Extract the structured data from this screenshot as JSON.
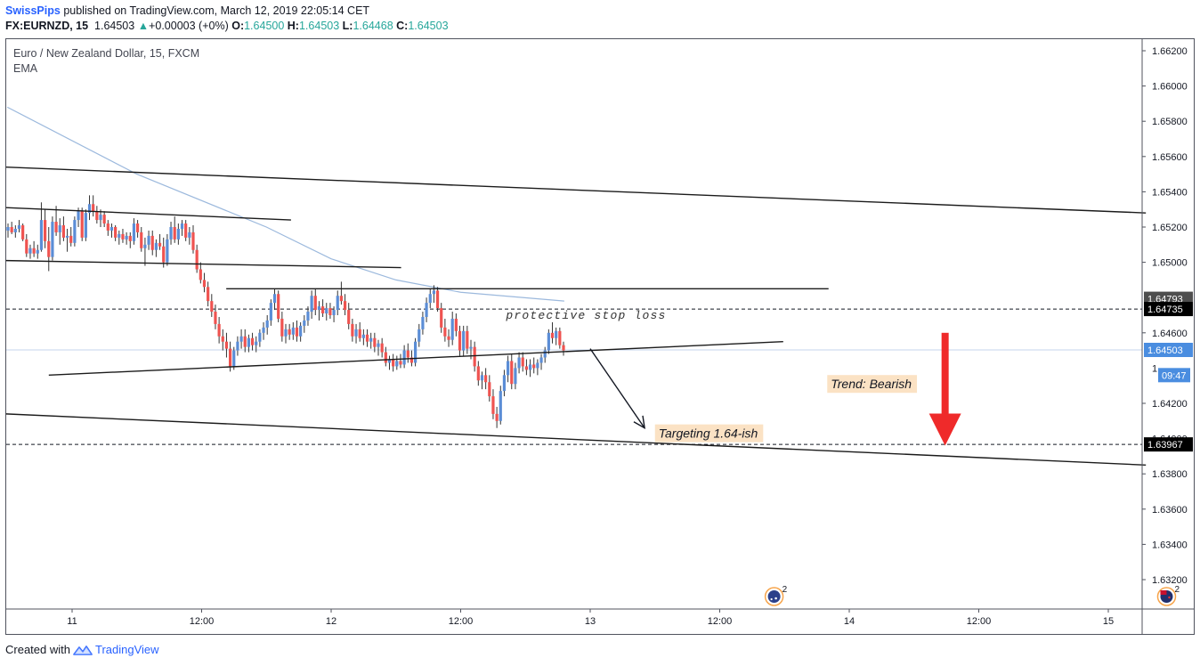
{
  "header": {
    "author": "SwissPips",
    "published": "published on TradingView.com, March 12, 2019 22:05:14 CET",
    "symbol": "FX:EURNZD, 15",
    "last": "1.64503",
    "change": "+0.00003 (+0%)",
    "o_label": "O:",
    "o_value": "1.64500",
    "h_label": "H:",
    "h_value": "1.64503",
    "l_label": "L:",
    "l_value": "1.64468",
    "c_label": "C:",
    "c_value": "1.64503"
  },
  "plot": {
    "title": "Euro / New Zealand Dollar, 15, FXCM",
    "indicator": "EMA"
  },
  "footer": {
    "created_with": "Created with",
    "brand": "TradingView"
  },
  "colors": {
    "up": "#5b8dd6",
    "down": "#ef5350",
    "ema": "#9cb9dd",
    "trend_arrow": "#ef2a2a",
    "label_bg": "#fbe2c4",
    "author": "#2962ff"
  },
  "chart_data": {
    "type": "candlestick",
    "title": "Euro / New Zealand Dollar, 15, FXCM",
    "x_tick_labels": [
      "11",
      "12:00",
      "12",
      "12:00",
      "13",
      "12:00",
      "14",
      "12:00",
      "15"
    ],
    "y_ticks": [
      1.632,
      1.634,
      1.636,
      1.638,
      1.642,
      1.646,
      1.65,
      1.652,
      1.654,
      1.656,
      1.658,
      1.66,
      1.662
    ],
    "y_tick_labels": [
      "1.63200",
      "1.63400",
      "1.63600",
      "1.63800",
      "1.64200",
      "1.64600",
      "1.65000",
      "1.65200",
      "1.65400",
      "1.65600",
      "1.65800",
      "1.66000",
      "1.66200"
    ],
    "ylim": [
      1.6306,
      1.6628
    ],
    "price_labels": [
      {
        "text": "1.64793",
        "price": 1.64793,
        "style": "dark"
      },
      {
        "text": "1.64735",
        "price": 1.64735,
        "style": "black"
      },
      {
        "text": "1.64503",
        "price": 1.64503,
        "style": "blue"
      },
      {
        "text": "09:47",
        "price": 1.6436,
        "style": "blue"
      },
      {
        "text": "1.63967",
        "price": 1.63967,
        "style": "black"
      }
    ],
    "ema_path": [
      [
        0.0,
        1.6588
      ],
      [
        1.0,
        1.655
      ],
      [
        2.0,
        1.652
      ],
      [
        2.5,
        1.6502
      ],
      [
        3.0,
        1.649
      ],
      [
        3.5,
        1.6483
      ],
      [
        4.3,
        1.6478
      ]
    ],
    "trendlines": [
      {
        "p1": [
          0.0,
          1.6554
        ],
        "p2": [
          8.8,
          1.6528
        ]
      },
      {
        "p1": [
          0.0,
          1.6531
        ],
        "p2": [
          2.2,
          1.6524
        ]
      },
      {
        "p1": [
          0.0,
          1.6501
        ],
        "p2": [
          3.05,
          1.6497
        ]
      },
      {
        "p1": [
          1.7,
          1.6485
        ],
        "p2": [
          6.35,
          1.6485
        ]
      },
      {
        "p1": [
          0.33,
          1.6436
        ],
        "p2": [
          6.0,
          1.6455
        ]
      },
      {
        "p1": [
          0.0,
          1.6414
        ],
        "p2": [
          8.8,
          1.6385
        ]
      }
    ],
    "hlines": [
      {
        "price": 1.64735,
        "style": "dashed"
      },
      {
        "price": 1.63967,
        "style": "dashed"
      },
      {
        "price": 1.64503,
        "style": "thin-blue"
      }
    ],
    "annotations": {
      "stop_loss": {
        "text": "protective stop loss",
        "x": 3.85,
        "price": 1.6468
      },
      "targeting": {
        "text": "Targeting 1.64-ish",
        "x": 5.0,
        "price": 1.6403
      },
      "trend": {
        "text": "Trend: Bearish",
        "x": 6.33,
        "price": 1.6431
      },
      "pointer_arrow": {
        "from": [
          4.5,
          1.6451
        ],
        "to": [
          4.92,
          1.6406
        ]
      },
      "trend_arrow": {
        "x": 7.24,
        "from": 1.646,
        "to": 1.6398
      }
    },
    "events": [
      {
        "x": 5.42,
        "count": "2",
        "flag": "AU"
      },
      {
        "x": 8.45,
        "count": "2",
        "flag": "NZ"
      }
    ],
    "candles": [
      [
        1.6518,
        1.6522,
        1.6514,
        1.652
      ],
      [
        1.652,
        1.6523,
        1.6516,
        1.6517
      ],
      [
        1.6517,
        1.6521,
        1.6514,
        1.6519
      ],
      [
        1.6519,
        1.6524,
        1.6517,
        1.6521
      ],
      [
        1.6521,
        1.6522,
        1.6512,
        1.6513
      ],
      [
        1.6513,
        1.6516,
        1.6503,
        1.6505
      ],
      [
        1.6505,
        1.651,
        1.6502,
        1.6508
      ],
      [
        1.6508,
        1.6512,
        1.6503,
        1.6505
      ],
      [
        1.6505,
        1.651,
        1.6502,
        1.6507
      ],
      [
        1.6507,
        1.6534,
        1.6506,
        1.6524
      ],
      [
        1.6524,
        1.653,
        1.6508,
        1.6512
      ],
      [
        1.6512,
        1.652,
        1.6495,
        1.6503
      ],
      [
        1.6503,
        1.6526,
        1.6501,
        1.6523
      ],
      [
        1.6523,
        1.6532,
        1.6515,
        1.6517
      ],
      [
        1.6517,
        1.6525,
        1.651,
        1.6521
      ],
      [
        1.6521,
        1.6526,
        1.6512,
        1.6514
      ],
      [
        1.6514,
        1.6519,
        1.6506,
        1.6515
      ],
      [
        1.6515,
        1.652,
        1.6509,
        1.6511
      ],
      [
        1.6511,
        1.6526,
        1.6509,
        1.6524
      ],
      [
        1.6524,
        1.6531,
        1.652,
        1.6529
      ],
      [
        1.6529,
        1.6531,
        1.6512,
        1.6514
      ],
      [
        1.6514,
        1.653,
        1.6512,
        1.6528
      ],
      [
        1.6528,
        1.6538,
        1.6524,
        1.6533
      ],
      [
        1.6533,
        1.6538,
        1.6526,
        1.6529
      ],
      [
        1.6529,
        1.6532,
        1.6522,
        1.6524
      ],
      [
        1.6524,
        1.653,
        1.652,
        1.6527
      ],
      [
        1.6527,
        1.6529,
        1.652,
        1.6522
      ],
      [
        1.6522,
        1.6524,
        1.6515,
        1.6518
      ],
      [
        1.6518,
        1.6522,
        1.6514,
        1.652
      ],
      [
        1.652,
        1.6521,
        1.6512,
        1.6514
      ],
      [
        1.6514,
        1.6518,
        1.651,
        1.6516
      ],
      [
        1.6516,
        1.6519,
        1.6511,
        1.6513
      ],
      [
        1.6513,
        1.6517,
        1.651,
        1.6515
      ],
      [
        1.6515,
        1.6517,
        1.6508,
        1.6512
      ],
      [
        1.6512,
        1.6525,
        1.651,
        1.6522
      ],
      [
        1.6522,
        1.6524,
        1.6514,
        1.6517
      ],
      [
        1.6517,
        1.652,
        1.6506,
        1.6508
      ],
      [
        1.6508,
        1.6514,
        1.6498,
        1.651
      ],
      [
        1.651,
        1.6518,
        1.6507,
        1.6515
      ],
      [
        1.6515,
        1.6518,
        1.6504,
        1.6507
      ],
      [
        1.6507,
        1.6513,
        1.6503,
        1.6511
      ],
      [
        1.6511,
        1.6516,
        1.6507,
        1.6509
      ],
      [
        1.6509,
        1.6514,
        1.6497,
        1.65
      ],
      [
        1.65,
        1.6516,
        1.6498,
        1.6513
      ],
      [
        1.6513,
        1.6523,
        1.651,
        1.652
      ],
      [
        1.652,
        1.6526,
        1.6511,
        1.6513
      ],
      [
        1.6513,
        1.6522,
        1.651,
        1.6519
      ],
      [
        1.6519,
        1.6524,
        1.6515,
        1.6522
      ],
      [
        1.6522,
        1.6524,
        1.6512,
        1.6514
      ],
      [
        1.6514,
        1.652,
        1.651,
        1.6517
      ],
      [
        1.6517,
        1.6521,
        1.6505,
        1.6507
      ],
      [
        1.6507,
        1.651,
        1.6494,
        1.6496
      ],
      [
        1.6496,
        1.65,
        1.6488,
        1.649
      ],
      [
        1.649,
        1.6494,
        1.6483,
        1.6486
      ],
      [
        1.6486,
        1.6489,
        1.6475,
        1.6478
      ],
      [
        1.6478,
        1.6482,
        1.6469,
        1.6472
      ],
      [
        1.6472,
        1.6476,
        1.6462,
        1.6465
      ],
      [
        1.6465,
        1.6469,
        1.6454,
        1.6458
      ],
      [
        1.6458,
        1.6462,
        1.645,
        1.6455
      ],
      [
        1.6455,
        1.646,
        1.6446,
        1.6451
      ],
      [
        1.6451,
        1.6455,
        1.6438,
        1.6441
      ],
      [
        1.6441,
        1.6452,
        1.6439,
        1.645
      ],
      [
        1.645,
        1.6458,
        1.6447,
        1.6455
      ],
      [
        1.6455,
        1.6462,
        1.6451,
        1.6458
      ],
      [
        1.6458,
        1.6462,
        1.6449,
        1.6452
      ],
      [
        1.6452,
        1.6459,
        1.6449,
        1.6457
      ],
      [
        1.6457,
        1.646,
        1.645,
        1.6453
      ],
      [
        1.6453,
        1.6458,
        1.6449,
        1.6455
      ],
      [
        1.6455,
        1.6462,
        1.6452,
        1.646
      ],
      [
        1.646,
        1.6466,
        1.6456,
        1.6463
      ],
      [
        1.6463,
        1.647,
        1.6459,
        1.6467
      ],
      [
        1.6467,
        1.6479,
        1.6464,
        1.6477
      ],
      [
        1.6477,
        1.6485,
        1.6473,
        1.6482
      ],
      [
        1.6482,
        1.6484,
        1.6466,
        1.6468
      ],
      [
        1.6468,
        1.6472,
        1.6455,
        1.6458
      ],
      [
        1.6458,
        1.6465,
        1.6454,
        1.6462
      ],
      [
        1.6462,
        1.6465,
        1.6456,
        1.6459
      ],
      [
        1.6459,
        1.6466,
        1.6456,
        1.6463
      ],
      [
        1.6463,
        1.6467,
        1.6455,
        1.6458
      ],
      [
        1.6458,
        1.6466,
        1.6455,
        1.6464
      ],
      [
        1.6464,
        1.647,
        1.646,
        1.6467
      ],
      [
        1.6467,
        1.6475,
        1.6464,
        1.6472
      ],
      [
        1.6472,
        1.6484,
        1.6468,
        1.6481
      ],
      [
        1.6481,
        1.6485,
        1.647,
        1.6473
      ],
      [
        1.6473,
        1.6478,
        1.6467,
        1.6475
      ],
      [
        1.6475,
        1.6479,
        1.6469,
        1.6471
      ],
      [
        1.6471,
        1.6477,
        1.6467,
        1.6474
      ],
      [
        1.6474,
        1.6477,
        1.6468,
        1.647
      ],
      [
        1.647,
        1.6475,
        1.6466,
        1.6473
      ],
      [
        1.6473,
        1.6484,
        1.647,
        1.6481
      ],
      [
        1.6481,
        1.6489,
        1.6476,
        1.6478
      ],
      [
        1.6478,
        1.6482,
        1.647,
        1.6473
      ],
      [
        1.6473,
        1.6477,
        1.6462,
        1.6465
      ],
      [
        1.6465,
        1.6468,
        1.6455,
        1.6458
      ],
      [
        1.6458,
        1.6465,
        1.6454,
        1.6462
      ],
      [
        1.6462,
        1.6466,
        1.6455,
        1.6457
      ],
      [
        1.6457,
        1.6462,
        1.6453,
        1.6459
      ],
      [
        1.6459,
        1.6462,
        1.6452,
        1.6455
      ],
      [
        1.6455,
        1.646,
        1.6451,
        1.6457
      ],
      [
        1.6457,
        1.646,
        1.6449,
        1.6452
      ],
      [
        1.6452,
        1.6456,
        1.6447,
        1.6454
      ],
      [
        1.6454,
        1.6457,
        1.6446,
        1.6449
      ],
      [
        1.6449,
        1.6452,
        1.6441,
        1.6443
      ],
      [
        1.6443,
        1.6447,
        1.6439,
        1.6445
      ],
      [
        1.6445,
        1.6448,
        1.6438,
        1.6441
      ],
      [
        1.6441,
        1.6447,
        1.6439,
        1.6444
      ],
      [
        1.6444,
        1.6448,
        1.644,
        1.6442
      ],
      [
        1.6442,
        1.6453,
        1.644,
        1.645
      ],
      [
        1.645,
        1.6454,
        1.6443,
        1.6446
      ],
      [
        1.6446,
        1.645,
        1.6441,
        1.6443
      ],
      [
        1.6443,
        1.6457,
        1.6441,
        1.6455
      ],
      [
        1.6455,
        1.6465,
        1.6452,
        1.6462
      ],
      [
        1.6462,
        1.6472,
        1.6459,
        1.6469
      ],
      [
        1.6469,
        1.648,
        1.6466,
        1.6477
      ],
      [
        1.6477,
        1.6485,
        1.6474,
        1.6482
      ],
      [
        1.6482,
        1.6487,
        1.6477,
        1.6484
      ],
      [
        1.6484,
        1.6486,
        1.6472,
        1.6474
      ],
      [
        1.6474,
        1.6477,
        1.646,
        1.6463
      ],
      [
        1.6463,
        1.6468,
        1.6455,
        1.6458
      ],
      [
        1.6458,
        1.6462,
        1.6452,
        1.6456
      ],
      [
        1.6456,
        1.6472,
        1.6453,
        1.6468
      ],
      [
        1.6468,
        1.6471,
        1.6458,
        1.6461
      ],
      [
        1.6461,
        1.6464,
        1.6447,
        1.645
      ],
      [
        1.645,
        1.6464,
        1.6447,
        1.6461
      ],
      [
        1.6461,
        1.6464,
        1.6448,
        1.6451
      ],
      [
        1.6451,
        1.6456,
        1.6445,
        1.6452
      ],
      [
        1.6452,
        1.6455,
        1.6438,
        1.6441
      ],
      [
        1.6441,
        1.6444,
        1.643,
        1.6433
      ],
      [
        1.6433,
        1.6438,
        1.6428,
        1.6436
      ],
      [
        1.6436,
        1.644,
        1.6428,
        1.6432
      ],
      [
        1.6432,
        1.6436,
        1.6421,
        1.6424
      ],
      [
        1.6424,
        1.6428,
        1.6411,
        1.6414
      ],
      [
        1.6414,
        1.6418,
        1.6406,
        1.641
      ],
      [
        1.641,
        1.643,
        1.6408,
        1.6427
      ],
      [
        1.6427,
        1.6439,
        1.6424,
        1.6436
      ],
      [
        1.6436,
        1.6447,
        1.6432,
        1.6444
      ],
      [
        1.6444,
        1.6448,
        1.6428,
        1.6431
      ],
      [
        1.6431,
        1.6443,
        1.6428,
        1.644
      ],
      [
        1.644,
        1.6449,
        1.6437,
        1.6446
      ],
      [
        1.6446,
        1.6449,
        1.6438,
        1.6441
      ],
      [
        1.6441,
        1.6445,
        1.6436,
        1.6439
      ],
      [
        1.6439,
        1.6445,
        1.6435,
        1.6442
      ],
      [
        1.6442,
        1.6446,
        1.6437,
        1.644
      ],
      [
        1.644,
        1.6445,
        1.6436,
        1.6443
      ],
      [
        1.6443,
        1.6448,
        1.6439,
        1.6446
      ],
      [
        1.6446,
        1.6452,
        1.6443,
        1.645
      ],
      [
        1.645,
        1.6462,
        1.6448,
        1.646
      ],
      [
        1.646,
        1.6466,
        1.6454,
        1.6457
      ],
      [
        1.6457,
        1.6463,
        1.6453,
        1.6461
      ],
      [
        1.6461,
        1.6463,
        1.6451,
        1.6453
      ],
      [
        1.6453,
        1.6455,
        1.6447,
        1.645
      ]
    ]
  }
}
